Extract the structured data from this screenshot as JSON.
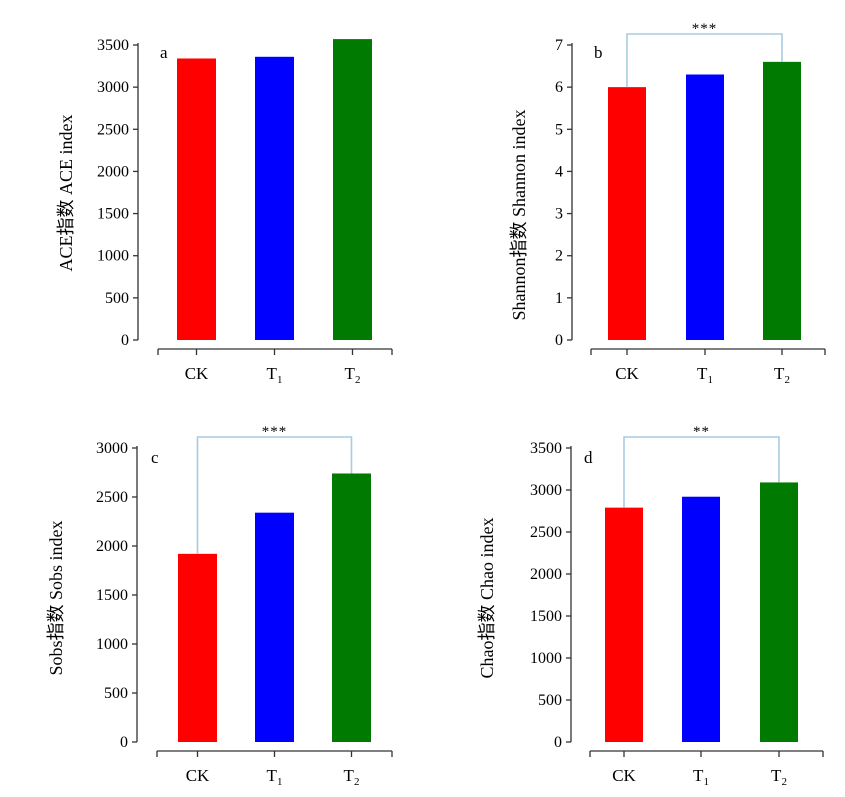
{
  "colors": {
    "CK": "#ff0000",
    "T1": "#0000ff",
    "T2": "#007a00",
    "bracket": "#a8cbe3"
  },
  "chart_data": [
    {
      "type": "bar",
      "panel": "a",
      "ylabel": "ACE指数 ACE index",
      "categories": [
        {
          "base": "CK",
          "sub": ""
        },
        {
          "base": "T",
          "sub": "1"
        },
        {
          "base": "T",
          "sub": "2"
        }
      ],
      "values": [
        3340,
        3360,
        3570
      ],
      "ylim": [
        0,
        3500
      ],
      "yticks": [
        0,
        500,
        1000,
        1500,
        2000,
        2500,
        3000,
        3500
      ],
      "significance": null
    },
    {
      "type": "bar",
      "panel": "b",
      "ylabel": "Shannon指数 Shannon index",
      "categories": [
        {
          "base": "CK",
          "sub": ""
        },
        {
          "base": "T",
          "sub": "1"
        },
        {
          "base": "T",
          "sub": "2"
        }
      ],
      "values": [
        6.0,
        6.3,
        6.6
      ],
      "ylim": [
        0,
        7
      ],
      "yticks": [
        0,
        1,
        2,
        3,
        4,
        5,
        6,
        7
      ],
      "significance": {
        "label": "***",
        "from": 0,
        "to": 2
      }
    },
    {
      "type": "bar",
      "panel": "c",
      "ylabel": "Sobs指数 Sobs index",
      "categories": [
        {
          "base": "CK",
          "sub": ""
        },
        {
          "base": "T",
          "sub": "1"
        },
        {
          "base": "T",
          "sub": "2"
        }
      ],
      "values": [
        1920,
        2340,
        2740
      ],
      "ylim": [
        0,
        3000
      ],
      "yticks": [
        0,
        500,
        1000,
        1500,
        2000,
        2500,
        3000
      ],
      "significance": {
        "label": "***",
        "from": 0,
        "to": 2
      }
    },
    {
      "type": "bar",
      "panel": "d",
      "ylabel": "Chao指数 Chao index",
      "categories": [
        {
          "base": "CK",
          "sub": ""
        },
        {
          "base": "T",
          "sub": "1"
        },
        {
          "base": "T",
          "sub": "2"
        }
      ],
      "values": [
        2790,
        2920,
        3090
      ],
      "ylim": [
        0,
        3500
      ],
      "yticks": [
        0,
        500,
        1000,
        1500,
        2000,
        2500,
        3000,
        3500
      ],
      "significance": {
        "label": "**",
        "from": 0,
        "to": 2
      }
    }
  ]
}
